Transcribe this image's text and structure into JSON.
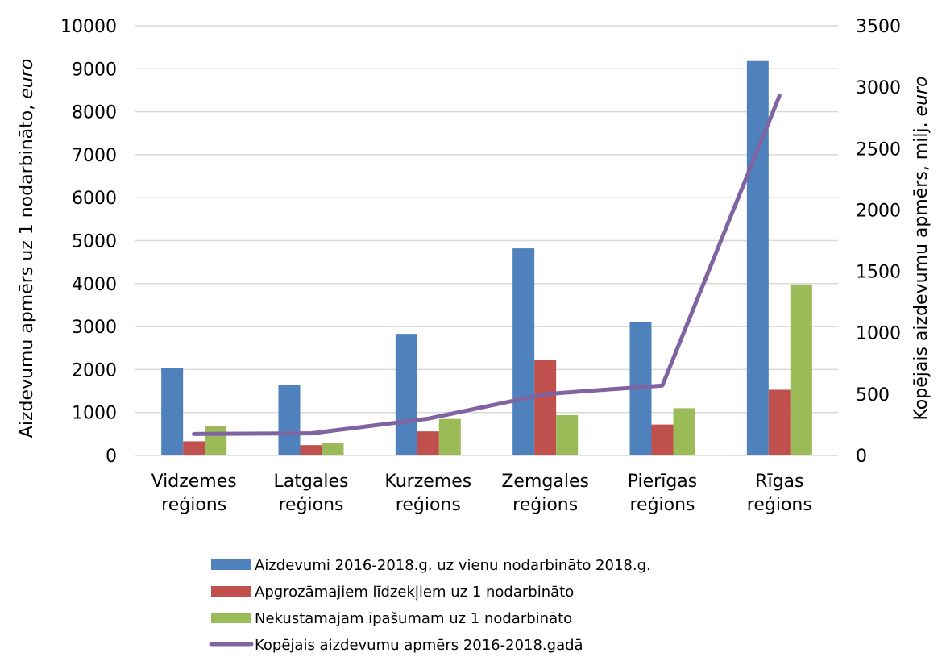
{
  "chart_data": {
    "type": "bar",
    "categories": [
      [
        "Vidzemes",
        "reģions"
      ],
      [
        "Latgales",
        "reģions"
      ],
      [
        "Kurzemes",
        "reģions"
      ],
      [
        "Zemgales",
        "reģions"
      ],
      [
        "Pierīgas",
        "reģions"
      ],
      [
        "Rīgas",
        "reģions"
      ]
    ],
    "series": [
      {
        "name": "Aizdevumi 2016-2018.g. uz vienu nodarbināto 2018.g.",
        "type": "bar",
        "axis": "left",
        "color": "#4F81BD",
        "values": [
          2030,
          1640,
          2830,
          4820,
          3110,
          9180
        ]
      },
      {
        "name": "Apgrozāmajiem līdzekļiem uz 1 nodarbināto",
        "type": "bar",
        "axis": "left",
        "color": "#C0504D",
        "values": [
          330,
          240,
          560,
          2230,
          720,
          1530
        ]
      },
      {
        "name": "Nekustamajam īpašumam uz 1 nodarbināto",
        "type": "bar",
        "axis": "left",
        "color": "#9BBB59",
        "values": [
          680,
          290,
          850,
          940,
          1100,
          3980
        ]
      },
      {
        "name": "Kopējais aizdevumu apmērs 2016-2018.gadā",
        "type": "line",
        "axis": "right",
        "color": "#8064A2",
        "values": [
          175,
          180,
          300,
          500,
          570,
          2930
        ]
      }
    ],
    "y_left": {
      "label_main": "Aizdevumu apmērs uz 1 nodarbināto, ",
      "label_unit": "euro",
      "ylim": [
        0,
        10000
      ],
      "ticks": [
        0,
        1000,
        2000,
        3000,
        4000,
        5000,
        6000,
        7000,
        8000,
        9000,
        10000
      ]
    },
    "y_right": {
      "label_main": "Kopējais aizdevumu apmērs, milj. ",
      "label_unit": "euro",
      "ylim": [
        0,
        3500
      ],
      "ticks": [
        0,
        500,
        1000,
        1500,
        2000,
        2500,
        3000,
        3500
      ]
    },
    "grid": true,
    "legend_position": "bottom"
  }
}
